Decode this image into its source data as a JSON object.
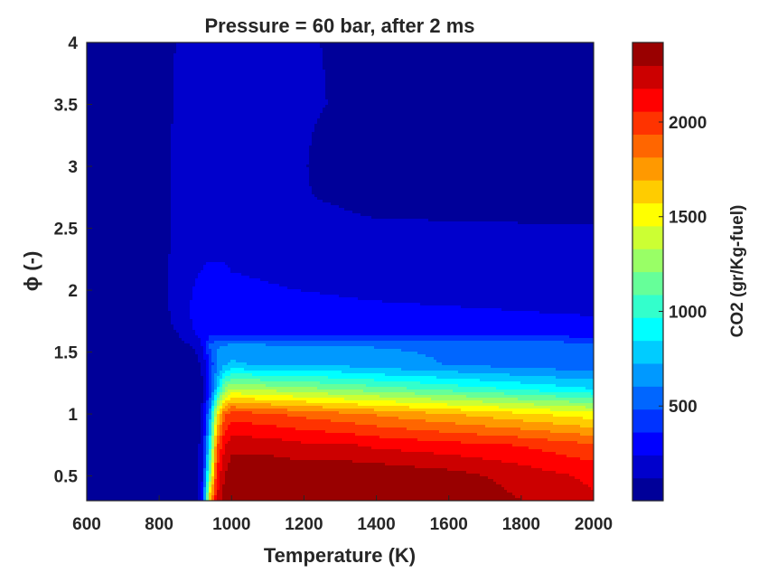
{
  "chart_data": {
    "type": "heatmap",
    "title": "Pressure = 60 bar, after 2 ms",
    "xlabel": "Temperature (K)",
    "ylabel": "ϕ (-)",
    "colorbar_label": "CO2 (gr/Kg-fuel)",
    "xlim": [
      600,
      2000
    ],
    "ylim": [
      0.3,
      4
    ],
    "color_range": [
      0,
      2420
    ],
    "x_ticks": [
      600,
      800,
      1000,
      1200,
      1400,
      1600,
      1800,
      2000
    ],
    "y_ticks": [
      0.5,
      1,
      1.5,
      2,
      2.5,
      3,
      3.5,
      4
    ],
    "colorbar_ticks": [
      500,
      1000,
      1500,
      2000
    ],
    "colormap": "jet",
    "x": [
      600,
      700,
      800,
      850,
      900,
      920,
      940,
      960,
      980,
      1000,
      1100,
      1200,
      1300,
      1400,
      1600,
      1800,
      2000
    ],
    "y": [
      0.3,
      0.5,
      0.75,
      1.0,
      1.2,
      1.4,
      1.55,
      1.65,
      1.8,
      2.0,
      2.5,
      2.75,
      3.0,
      3.5,
      4.0
    ],
    "z": [
      [
        30,
        30,
        30,
        30,
        30,
        300,
        1700,
        2200,
        2350,
        2400,
        2400,
        2400,
        2400,
        2400,
        2400,
        2300,
        2200
      ],
      [
        30,
        30,
        30,
        30,
        30,
        250,
        1200,
        2100,
        2300,
        2400,
        2400,
        2400,
        2400,
        2400,
        2350,
        2250,
        2150
      ],
      [
        30,
        30,
        30,
        30,
        30,
        200,
        900,
        1900,
        2150,
        2250,
        2250,
        2200,
        2200,
        2150,
        2100,
        2050,
        1950
      ],
      [
        30,
        30,
        30,
        30,
        30,
        150,
        650,
        1500,
        1900,
        2000,
        1950,
        1900,
        1850,
        1800,
        1700,
        1600,
        1500
      ],
      [
        30,
        30,
        30,
        30,
        30,
        100,
        350,
        800,
        1200,
        1350,
        1300,
        1250,
        1200,
        1150,
        1050,
        950,
        850
      ],
      [
        30,
        30,
        30,
        40,
        70,
        150,
        400,
        600,
        700,
        750,
        700,
        700,
        700,
        650,
        600,
        550,
        520
      ],
      [
        30,
        30,
        30,
        60,
        140,
        250,
        500,
        600,
        620,
        640,
        630,
        620,
        610,
        600,
        590,
        580,
        560
      ],
      [
        30,
        30,
        40,
        120,
        250,
        300,
        320,
        330,
        340,
        340,
        340,
        330,
        330,
        320,
        310,
        300,
        290
      ],
      [
        30,
        30,
        40,
        180,
        270,
        290,
        300,
        300,
        300,
        300,
        300,
        290,
        280,
        270,
        260,
        250,
        240
      ],
      [
        30,
        30,
        40,
        200,
        250,
        260,
        270,
        270,
        270,
        260,
        250,
        240,
        230,
        220,
        210,
        200,
        190
      ],
      [
        30,
        30,
        40,
        170,
        200,
        210,
        210,
        210,
        210,
        200,
        190,
        180,
        170,
        160,
        150,
        140,
        130
      ],
      [
        30,
        30,
        40,
        160,
        180,
        180,
        180,
        180,
        180,
        170,
        160,
        130,
        100,
        40,
        30,
        30,
        30
      ],
      [
        30,
        30,
        40,
        160,
        180,
        180,
        180,
        180,
        170,
        160,
        150,
        130,
        40,
        30,
        30,
        30,
        30
      ],
      [
        30,
        30,
        40,
        150,
        160,
        170,
        175,
        175,
        175,
        160,
        150,
        140,
        110,
        40,
        30,
        30,
        30
      ],
      [
        30,
        30,
        40,
        130,
        150,
        150,
        150,
        150,
        150,
        150,
        140,
        130,
        110,
        100,
        30,
        30,
        30
      ]
    ]
  }
}
